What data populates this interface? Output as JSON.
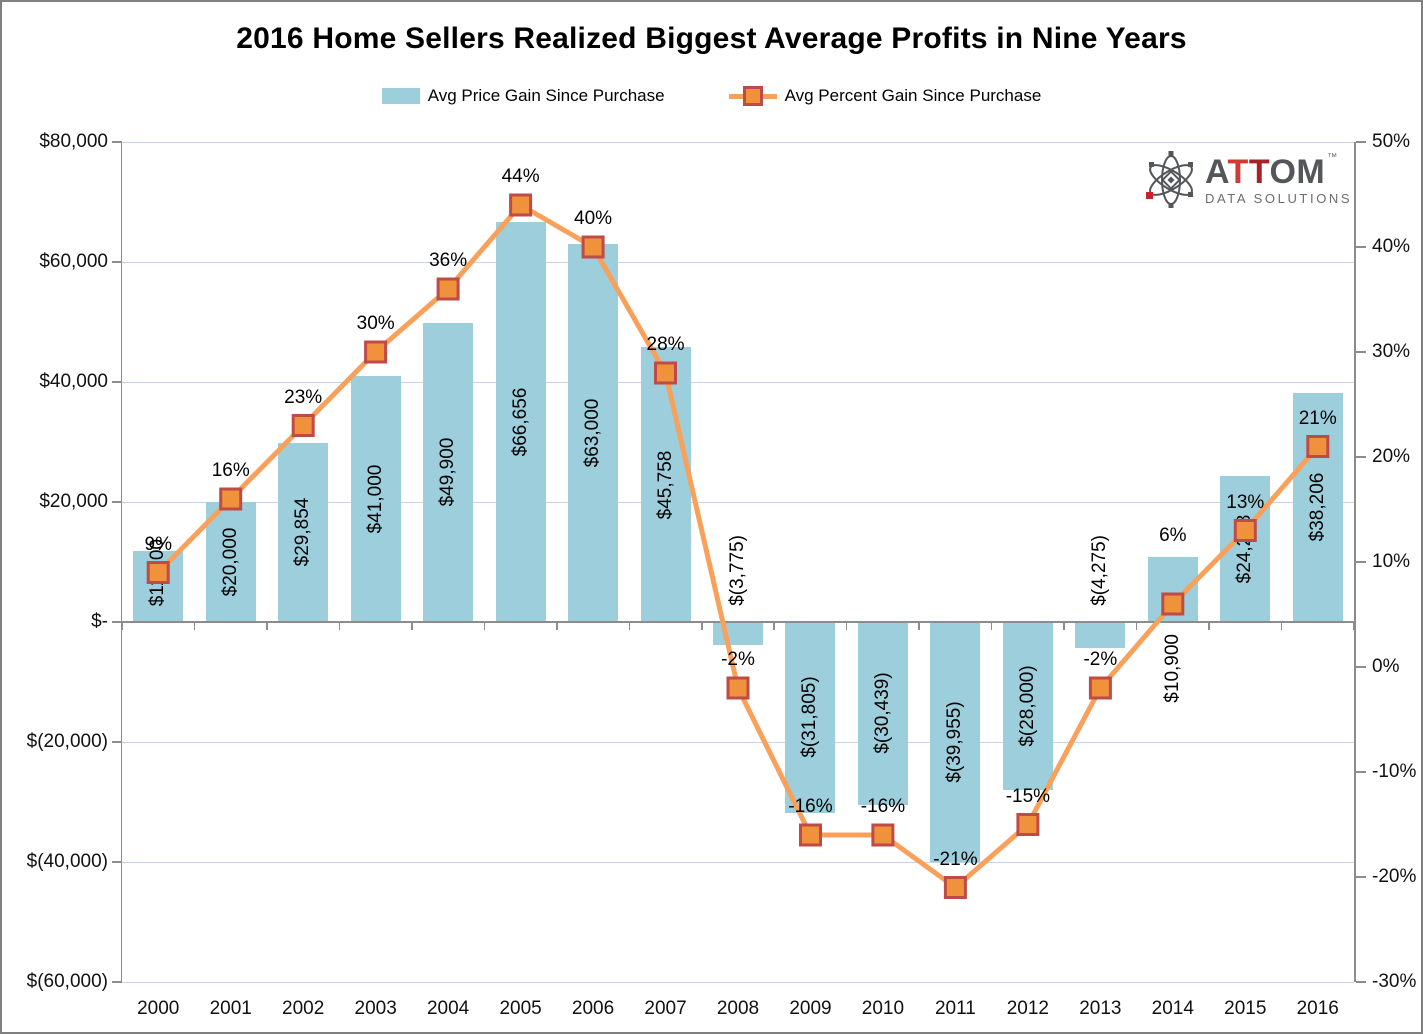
{
  "title": "2016 Home Sellers Realized Biggest Average Profits in Nine Years",
  "legend": {
    "bar_label": "Avg Price Gain Since Purchase",
    "line_label": "Avg Percent Gain Since Purchase"
  },
  "logo": {
    "brand_parts": [
      {
        "text": "A",
        "color": "#54565A"
      },
      {
        "text": "T",
        "color": "#D23B33"
      },
      {
        "text": "T",
        "color": "#A92125"
      },
      {
        "text": "OM",
        "color": "#54565A"
      }
    ],
    "tagline": "DATA SOLUTIONS",
    "tm": "™"
  },
  "colors": {
    "bar": "#9CCEDC",
    "line": "#F9A05A",
    "marker_fill": "#F0913B",
    "marker_border": "#BE4B48",
    "gridline": "#C3D3EA",
    "axis": "#8C8C8C",
    "text": "#111111",
    "logo_gray": "#54565A",
    "logo_red": "#C8202D"
  },
  "chart_data": {
    "type": "combo-bar-line",
    "categories": [
      "2000",
      "2001",
      "2002",
      "2003",
      "2004",
      "2005",
      "2006",
      "2007",
      "2008",
      "2009",
      "2010",
      "2011",
      "2012",
      "2013",
      "2014",
      "2015",
      "2016"
    ],
    "series": [
      {
        "name": "Avg Price Gain Since Purchase",
        "type": "bar",
        "axis": "left",
        "values": [
          11800,
          20000,
          29854,
          41000,
          49900,
          66656,
          63000,
          45758,
          -3775,
          -31805,
          -30439,
          -39955,
          -28000,
          -4275,
          10900,
          24288,
          38206
        ],
        "data_labels": [
          "$11,800",
          "$20,000",
          "$29,854",
          "$41,000",
          "$49,900",
          "$66,656",
          "$63,000",
          "$45,758",
          "$(3,775)",
          "$(31,805)",
          "$(30,439)",
          "$(39,955)",
          "$(28,000)",
          "$(4,275)",
          "$10,900",
          "$24,288",
          "$38,206"
        ],
        "label_pos": [
          "above-axis",
          "center",
          "center",
          "center",
          "center",
          "center",
          "center",
          "center",
          "above-axis",
          "center",
          "center",
          "center",
          "center",
          "above-axis",
          "below-axis",
          "center",
          "center"
        ]
      },
      {
        "name": "Avg Percent Gain Since Purchase",
        "type": "line",
        "axis": "right",
        "values": [
          9,
          16,
          23,
          30,
          36,
          44,
          40,
          28,
          -2,
          -16,
          -16,
          -21,
          -15,
          -2,
          6,
          13,
          21
        ],
        "data_labels": [
          "9%",
          "16%",
          "23%",
          "30%",
          "36%",
          "44%",
          "40%",
          "28%",
          "-2%",
          "-16%",
          "-16%",
          "-21%",
          "-15%",
          "-2%",
          "6%",
          "13%",
          "21%"
        ],
        "label_dy": [
          -17,
          -17,
          -17,
          -17,
          -17,
          -17,
          -17,
          -17,
          -17,
          -17,
          -17,
          -17,
          -17,
          -17,
          -57,
          -17,
          -17
        ]
      }
    ],
    "left_axis": {
      "tick_labels": [
        "$80,000",
        "$60,000",
        "$40,000",
        "$20,000",
        "$-",
        "$(20,000)",
        "$(40,000)",
        "$(60,000)"
      ],
      "tick_values": [
        80000,
        60000,
        40000,
        20000,
        0,
        -20000,
        -40000,
        -60000
      ],
      "min": -60000,
      "max": 80000
    },
    "right_axis": {
      "tick_labels": [
        "50%",
        "40%",
        "30%",
        "20%",
        "10%",
        "0%",
        "-10%",
        "-20%",
        "-30%"
      ],
      "tick_values": [
        50,
        40,
        30,
        20,
        10,
        0,
        -10,
        -20,
        -30
      ],
      "min": -30,
      "max": 50
    },
    "grid": true,
    "legend_position": "top"
  }
}
